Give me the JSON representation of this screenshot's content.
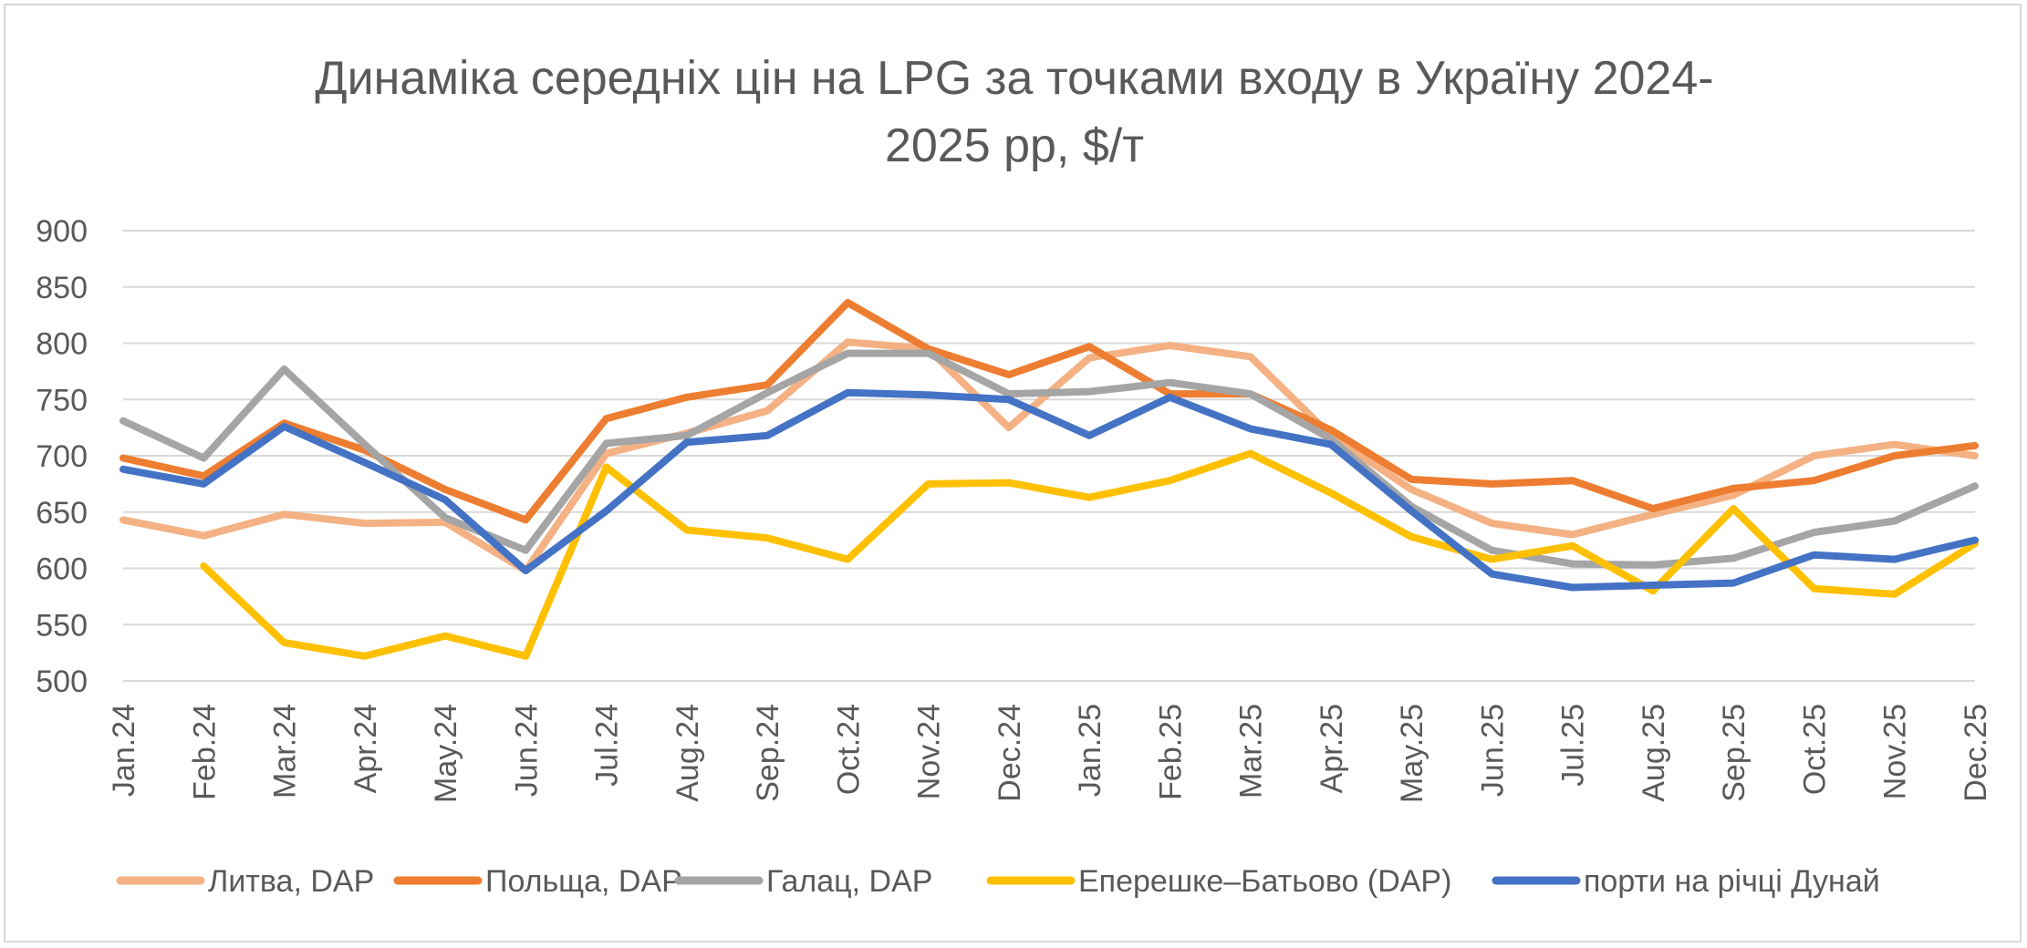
{
  "chart_data": {
    "type": "line",
    "title_lines": [
      "Динаміка середніх цін на LPG за точками входу в Україну 2024-",
      "2025 рр, $/т"
    ],
    "xlabel": "",
    "ylabel": "",
    "ylim": [
      500,
      900
    ],
    "yticks": [
      500,
      550,
      600,
      650,
      700,
      750,
      800,
      850,
      900
    ],
    "grid": true,
    "legend_position": "bottom",
    "categories": [
      "Jan.24",
      "Feb.24",
      "Mar.24",
      "Apr.24",
      "May.24",
      "Jun.24",
      "Jul.24",
      "Aug.24",
      "Sep.24",
      "Oct.24",
      "Nov.24",
      "Dec.24",
      "Jan.25",
      "Feb.25",
      "Mar.25",
      "Apr.25",
      "May.25",
      "Jun.25",
      "Jul.25",
      "Aug.25",
      "Sep.25",
      "Oct.25",
      "Nov.25",
      "Dec.25"
    ],
    "series": [
      {
        "name": "Литва, DAP",
        "color": "#f4b183",
        "values": [
          643,
          629,
          648,
          640,
          641,
          598,
          702,
          720,
          740,
          801,
          795,
          725,
          787,
          798,
          788,
          718,
          670,
          640,
          630,
          648,
          665,
          700,
          710,
          700
        ]
      },
      {
        "name": "Польща, DAP",
        "color": "#ed7d31",
        "values": [
          698,
          682,
          729,
          705,
          670,
          643,
          733,
          752,
          763,
          836,
          795,
          772,
          797,
          755,
          755,
          723,
          679,
          675,
          678,
          653,
          671,
          678,
          700,
          709
        ]
      },
      {
        "name": "Галац, DAP",
        "color": "#a5a5a5",
        "values": [
          731,
          698,
          777,
          710,
          645,
          616,
          711,
          718,
          756,
          791,
          791,
          755,
          757,
          765,
          755,
          715,
          655,
          616,
          604,
          603,
          609,
          632,
          642,
          673
        ]
      },
      {
        "name": "Еперешке–Батьово (DAP)",
        "color": "#ffc000",
        "values": [
          null,
          602,
          534,
          522,
          540,
          522,
          690,
          634,
          627,
          608,
          675,
          676,
          663,
          678,
          702,
          667,
          628,
          608,
          620,
          580,
          653,
          582,
          577,
          622
        ]
      },
      {
        "name": "порти на річці Дунай",
        "color": "#4472c4",
        "values": [
          688,
          675,
          726,
          694,
          661,
          598,
          651,
          712,
          718,
          756,
          754,
          750,
          718,
          752,
          724,
          710,
          651,
          595,
          583,
          585,
          587,
          612,
          608,
          625
        ]
      }
    ]
  }
}
